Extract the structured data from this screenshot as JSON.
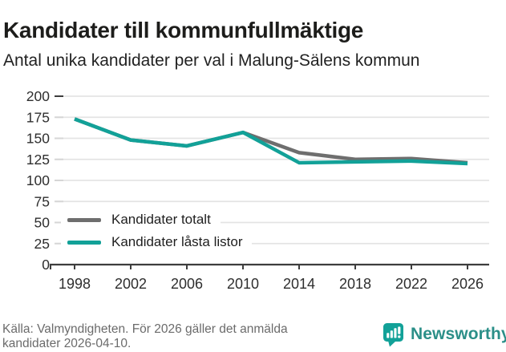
{
  "header": {
    "title": "Kandidater till kommunfullmäktige",
    "subtitle": "Antal unika kandidater per val i Malung-Sälens kommun"
  },
  "chart_data": {
    "type": "line",
    "categories": [
      "1998",
      "2002",
      "2006",
      "2010",
      "2014",
      "2018",
      "2022",
      "2026"
    ],
    "series": [
      {
        "name": "Kandidater totalt",
        "color": "#6e6e6e",
        "values": [
          173,
          148,
          141,
          157,
          133,
          125,
          126,
          121
        ]
      },
      {
        "name": "Kandidater låsta listor",
        "color": "#12a198",
        "values": [
          173,
          148,
          141,
          157,
          121,
          122,
          123,
          120
        ]
      }
    ],
    "title": "Kandidater till kommunfullmäktige",
    "subtitle": "Antal unika kandidater per val i Malung-Sälens kommun",
    "xlabel": "",
    "ylabel": "",
    "ylim": [
      0,
      200
    ],
    "ytick_step": 25,
    "grid": true,
    "legend_position": "inside bottom-left"
  },
  "footer": {
    "source": "Källa: Valmyndigheten. För 2026 gäller det anmälda kandidater 2026-04-10.",
    "brand": "Newsworthy"
  },
  "colors": {
    "accent_teal": "#12a198",
    "series_gray": "#6e6e6e",
    "brand_text": "#2b8f88",
    "text_dark": "#1d1d1b",
    "text_muted": "#6b6b6b",
    "gridline": "#e4e4e4",
    "axis": "#3d3d3d"
  }
}
